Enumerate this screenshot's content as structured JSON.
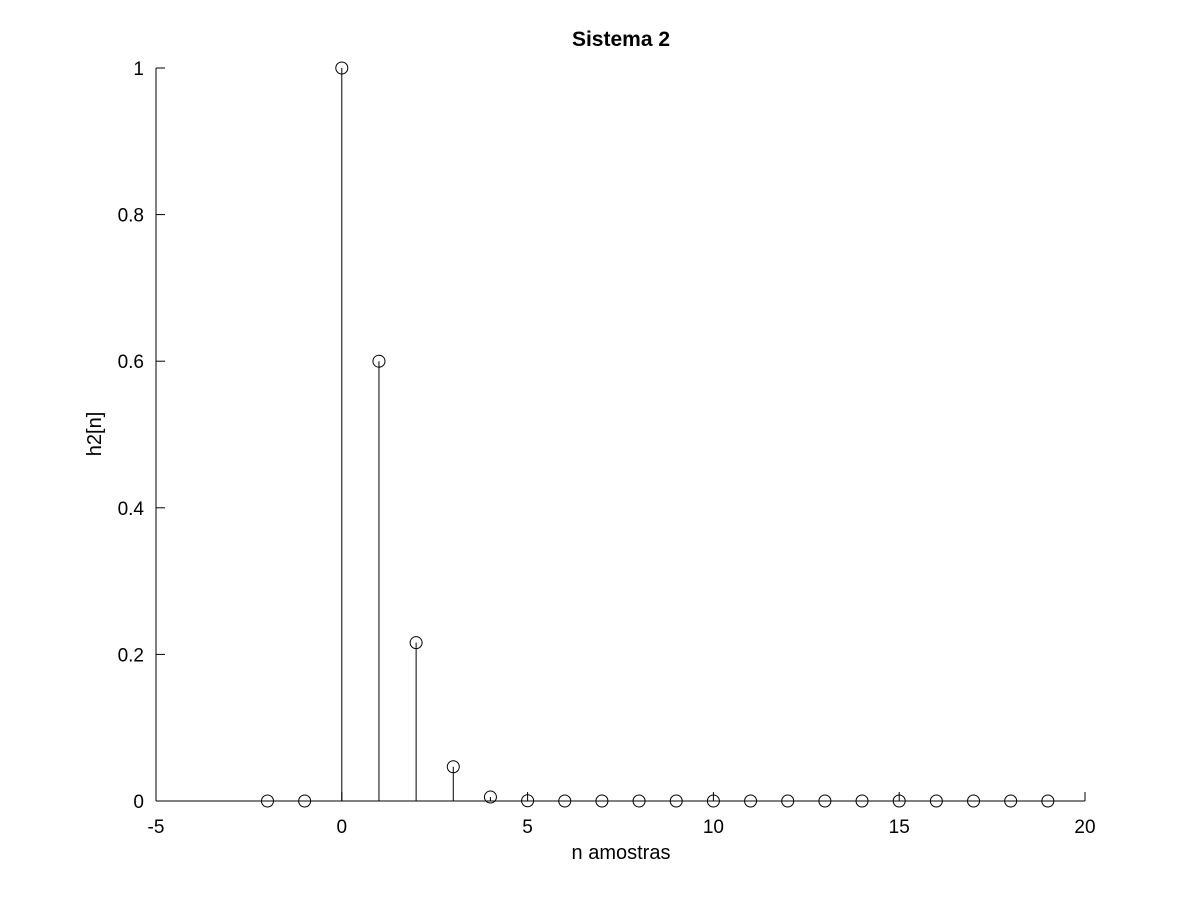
{
  "chart_data": {
    "type": "stem",
    "title": "Sistema 2",
    "xlabel": "n amostras",
    "ylabel": "h2[n]",
    "xlim": [
      -5,
      20
    ],
    "ylim": [
      0,
      1
    ],
    "xticks": [
      -5,
      0,
      5,
      10,
      15,
      20
    ],
    "yticks": [
      0,
      0.2,
      0.4,
      0.6,
      0.8,
      1
    ],
    "xtick_labels": [
      "-5",
      "0",
      "5",
      "10",
      "15",
      "20"
    ],
    "ytick_labels": [
      "0",
      "0.2",
      "0.4",
      "0.6",
      "0.8",
      "1"
    ],
    "grid": false,
    "marker": "open-circle",
    "color": "#000000",
    "series": [
      {
        "x": [
          -2,
          -1,
          0,
          1,
          2,
          3,
          4,
          5,
          6,
          7,
          8,
          9,
          10,
          11,
          12,
          13,
          14,
          15,
          16,
          17,
          18,
          19
        ],
        "y": [
          0,
          0,
          1,
          0.6,
          0.216,
          0.0467,
          0.0054,
          0.0003,
          0,
          0,
          0,
          0,
          0,
          0,
          0,
          0,
          0,
          0,
          0,
          0,
          0,
          0
        ]
      }
    ]
  }
}
